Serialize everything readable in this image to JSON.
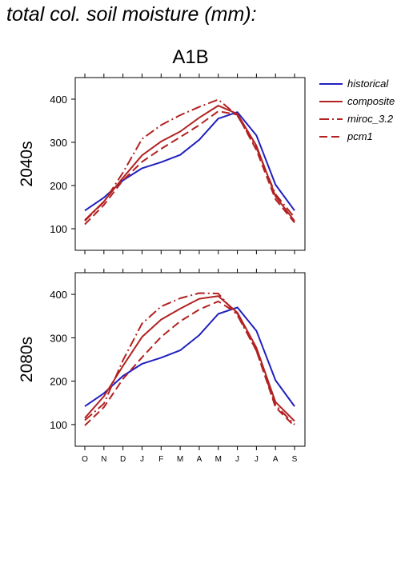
{
  "page_title": "total col. soil moisture (mm):",
  "colors": {
    "historical": "#2020c0",
    "projection": "#b22222",
    "axis": "#000000"
  },
  "chart_data": {
    "type": "line",
    "title": "A1B",
    "xlabel": "",
    "ylabel": "",
    "categories": [
      "O",
      "N",
      "D",
      "J",
      "F",
      "M",
      "A",
      "M",
      "J",
      "J",
      "A",
      "S"
    ],
    "ylim": [
      50,
      450
    ],
    "yticks": [
      100,
      200,
      300,
      400
    ],
    "grid": false,
    "legend_position": "right",
    "legend": [
      {
        "name": "historical",
        "color": "#2020c0",
        "dash": "solid"
      },
      {
        "name": "composite",
        "color": "#b22222",
        "dash": "solid"
      },
      {
        "name": "miroc_3.2",
        "color": "#b22222",
        "dash": "dashdot"
      },
      {
        "name": "pcm1",
        "color": "#b22222",
        "dash": "dashed"
      }
    ],
    "panels": [
      {
        "label": "2040s",
        "series": [
          {
            "name": "historical",
            "values": [
              142,
              172,
              212,
              240,
              254,
              271,
              306,
              355,
              370,
              316,
              202,
              142
            ]
          },
          {
            "name": "composite",
            "values": [
              120,
              163,
              218,
              270,
              302,
              325,
              357,
              385,
              366,
              292,
              175,
              118
            ]
          },
          {
            "name": "miroc_3.2",
            "values": [
              118,
              162,
              230,
              308,
              340,
              363,
              382,
              399,
              362,
              287,
              180,
              126
            ]
          },
          {
            "name": "pcm1",
            "values": [
              110,
              155,
              212,
              255,
              285,
              312,
              340,
              372,
              364,
              282,
              168,
              114
            ]
          }
        ]
      },
      {
        "label": "2080s",
        "series": [
          {
            "name": "historical",
            "values": [
              142,
              172,
              212,
              240,
              254,
              271,
              306,
              355,
              370,
              316,
              202,
              142
            ]
          },
          {
            "name": "composite",
            "values": [
              115,
              165,
              235,
              302,
              342,
              367,
              390,
              396,
              358,
              277,
              152,
              108
            ]
          },
          {
            "name": "miroc_3.2",
            "values": [
              110,
              148,
              248,
              333,
              372,
              391,
              403,
              402,
              352,
              270,
              145,
              100
            ]
          },
          {
            "name": "pcm1",
            "values": [
              98,
              140,
              205,
              255,
              302,
              338,
              365,
              384,
              356,
              270,
              140,
              96
            ]
          }
        ]
      }
    ]
  }
}
